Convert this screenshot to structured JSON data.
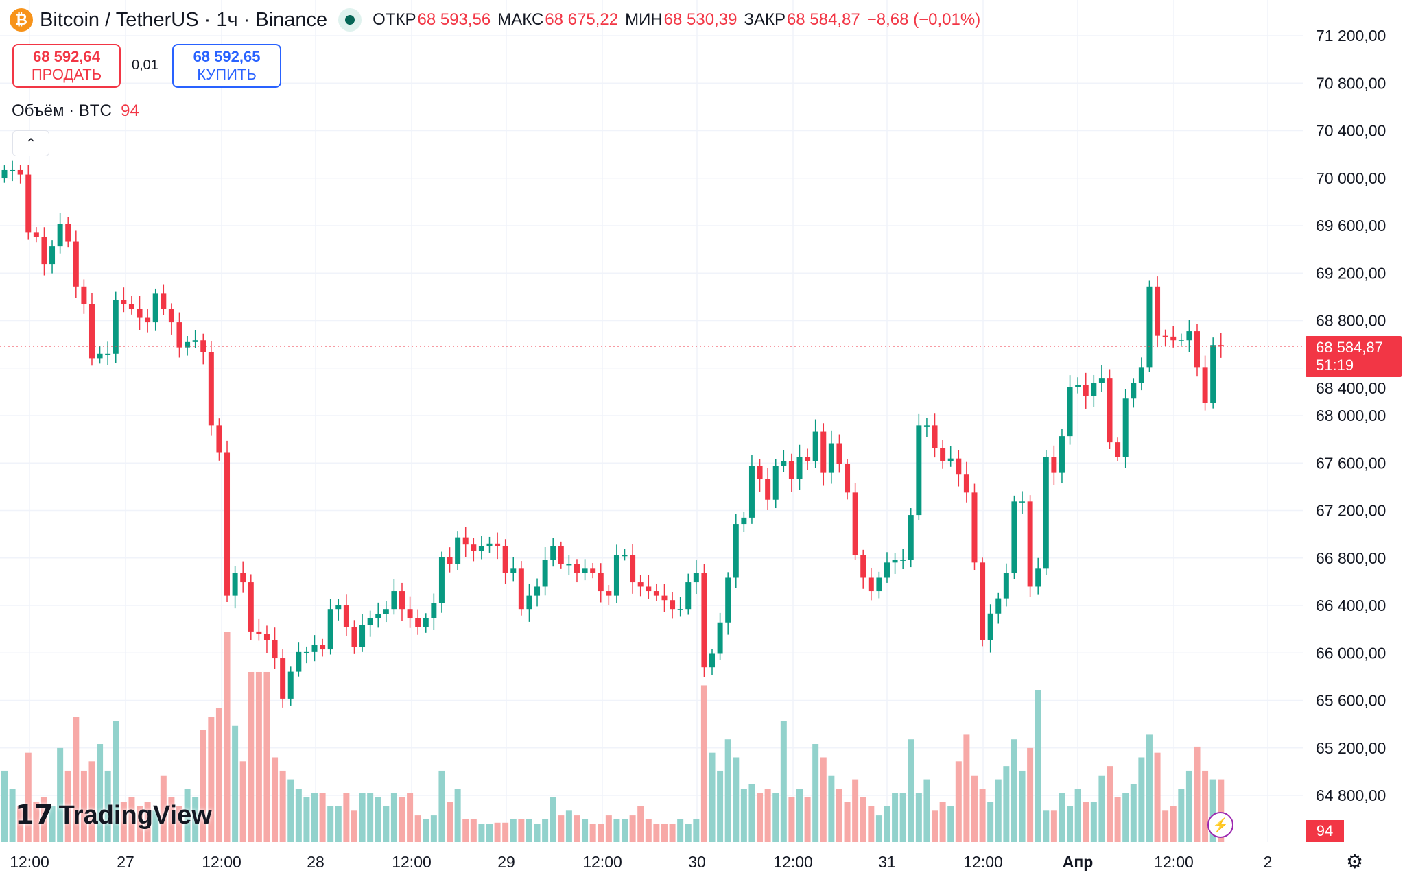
{
  "header": {
    "symbol": "Bitcoin / TetherUS · 1ч · Binance",
    "coin_icon": "₿",
    "status": "market-open",
    "ohlc": [
      {
        "k": "ОТКР",
        "v": "68 593,56"
      },
      {
        "k": "МАКС",
        "v": "68 675,22"
      },
      {
        "k": "МИН",
        "v": "68 530,39"
      },
      {
        "k": "ЗАКР",
        "v": "68 584,87"
      }
    ],
    "change": "−8,68 (−0,01%)"
  },
  "trade": {
    "sell_price": "68 592,64",
    "sell_label": "ПРОДАТЬ",
    "spread": "0,01",
    "buy_price": "68 592,65",
    "buy_label": "КУПИТЬ"
  },
  "volume_legend": {
    "label": "Объём · BTC",
    "value": "94"
  },
  "logo": "TradingView",
  "last_price": {
    "price": "68 584,87",
    "countdown": "51:19"
  },
  "volume_badge": "94",
  "colors": {
    "up": "#089981",
    "down": "#f23645",
    "vol_up": "#92d2cc",
    "vol_down": "#f7a9a7"
  },
  "chart_data": {
    "type": "candlestick",
    "ylim": [
      64600,
      71400
    ],
    "y_ticks": [
      "71 200,00",
      "70 800,00",
      "70 400,00",
      "70 000,00",
      "69 600,00",
      "69 200,00",
      "68 800,00",
      "68 400,00",
      "68 000,00",
      "67 600,00",
      "67 200,00",
      "66 800,00",
      "66 400,00",
      "66 000,00",
      "65 600,00",
      "65 200,00",
      "64 800,00"
    ],
    "y_tick_values": [
      71200,
      70800,
      70400,
      70000,
      69600,
      69200,
      68800,
      68400,
      68000,
      67600,
      67200,
      66800,
      66400,
      66000,
      65600,
      65200,
      64800
    ],
    "x_ticks": [
      "12:00",
      "27",
      "12:00",
      "28",
      "12:00",
      "29",
      "12:00",
      "30",
      "12:00",
      "31",
      "12:00",
      "Апр",
      "12:00",
      "2"
    ],
    "first_open": 70000,
    "close": [
      70068,
      70068,
      70030,
      69540,
      69502,
      69276,
      69426,
      69615,
      69464,
      69087,
      68936,
      68483,
      68521,
      68521,
      68974,
      68936,
      68898,
      68823,
      68785,
      69026,
      68898,
      68785,
      68574,
      68619,
      68634,
      68536,
      67917,
      67691,
      66483,
      66672,
      66596,
      66181,
      66159,
      66106,
      65955,
      65615,
      65842,
      66008,
      66008,
      66068,
      66030,
      66370,
      66400,
      66219,
      66053,
      66234,
      66294,
      66325,
      66370,
      66521,
      66370,
      66294,
      66219,
      66294,
      66423,
      66808,
      66747,
      66974,
      66913,
      66860,
      66898,
      66921,
      66898,
      66672,
      66710,
      66370,
      66483,
      66559,
      66785,
      66898,
      66747,
      66747,
      66672,
      66710,
      66672,
      66521,
      66483,
      66823,
      66823,
      66596,
      66559,
      66521,
      66483,
      66445,
      66370,
      66370,
      66596,
      66672,
      65879,
      65993,
      66257,
      66634,
      67087,
      67140,
      67577,
      67464,
      67291,
      67577,
      67615,
      67464,
      67653,
      67615,
      67864,
      67517,
      67766,
      67593,
      67351,
      66823,
      66634,
      66521,
      66634,
      66762,
      66785,
      66785,
      67162,
      67917,
      67917,
      67728,
      67615,
      67638,
      67502,
      67351,
      66762,
      66106,
      66332,
      66460,
      66672,
      67276,
      67276,
      66559,
      66710,
      67653,
      67517,
      67826,
      68242,
      68257,
      68166,
      68272,
      68317,
      67774,
      67653,
      68143,
      68272,
      68408,
      69087,
      68672,
      68665,
      68634,
      68634,
      68710,
      68408,
      68106,
      68593.56,
      68584.87
    ],
    "volume": [
      107,
      80,
      54,
      134,
      60,
      67,
      54,
      141,
      107,
      188,
      107,
      121,
      147,
      107,
      181,
      60,
      67,
      54,
      60,
      47,
      100,
      67,
      54,
      80,
      67,
      168,
      188,
      201,
      315,
      174,
      121,
      255,
      255,
      255,
      127,
      107,
      94,
      80,
      67,
      74,
      74,
      54,
      54,
      74,
      47,
      74,
      74,
      67,
      54,
      74,
      67,
      74,
      40,
      34,
      40,
      107,
      60,
      80,
      34,
      34,
      27,
      27,
      29,
      29,
      34,
      34,
      34,
      27,
      34,
      67,
      40,
      47,
      40,
      34,
      27,
      27,
      40,
      34,
      34,
      40,
      54,
      34,
      27,
      27,
      27,
      34,
      27,
      34,
      235,
      134,
      107,
      154,
      127,
      80,
      87,
      74,
      80,
      74,
      181,
      67,
      80,
      67,
      147,
      127,
      100,
      80,
      60,
      94,
      67,
      54,
      40,
      54,
      74,
      74,
      154,
      74,
      94,
      47,
      60,
      54,
      121,
      161,
      100,
      80,
      60,
      94,
      114,
      154,
      107,
      141,
      228,
      47,
      47,
      74,
      54,
      80,
      60,
      60,
      100,
      114,
      67,
      74,
      87,
      127,
      161,
      134,
      47,
      54,
      80,
      107,
      143,
      107,
      94,
      94
    ]
  }
}
